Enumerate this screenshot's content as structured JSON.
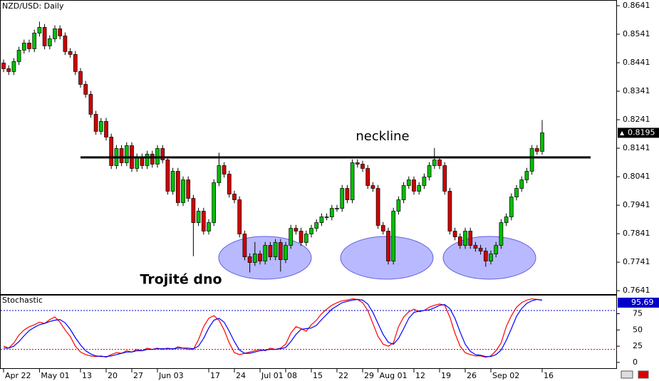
{
  "chart_data": [
    {
      "type": "candlestick",
      "title": "NZD/USD: Daily",
      "categories": [
        "Apr 22",
        null,
        null,
        null,
        null,
        null,
        null,
        "May 01",
        null,
        null,
        null,
        null,
        null,
        null,
        null,
        "13",
        null,
        null,
        null,
        null,
        "20",
        null,
        null,
        null,
        null,
        "27",
        null,
        null,
        null,
        null,
        "Jun 03",
        null,
        null,
        null,
        null,
        null,
        null,
        null,
        null,
        null,
        "17",
        null,
        null,
        null,
        null,
        "24",
        null,
        null,
        null,
        null,
        "Jul 01",
        null,
        null,
        null,
        null,
        "08",
        null,
        null,
        null,
        null,
        "15",
        null,
        null,
        null,
        null,
        "22",
        null,
        null,
        null,
        null,
        "29",
        null,
        null,
        "Aug 01",
        null,
        null,
        null,
        null,
        null,
        null,
        "12",
        null,
        null,
        null,
        null,
        "19",
        null,
        null,
        null,
        null,
        "26",
        null,
        null,
        null,
        null,
        "Sep 02",
        null,
        null,
        null,
        null,
        null,
        null,
        null,
        null,
        null,
        "16"
      ],
      "candles": [
        [
          0.844,
          0.8452,
          0.8408,
          0.842
        ],
        [
          0.842,
          0.8432,
          0.8398,
          0.841
        ],
        [
          0.841,
          0.8457,
          0.8398,
          0.8445
        ],
        [
          0.8445,
          0.8497,
          0.8433,
          0.8485
        ],
        [
          0.8485,
          0.8522,
          0.8473,
          0.851
        ],
        [
          0.851,
          0.8522,
          0.8478,
          0.849
        ],
        [
          0.849,
          0.8557,
          0.8478,
          0.8545
        ],
        [
          0.8545,
          0.8585,
          0.8533,
          0.8565
        ],
        [
          0.8565,
          0.8577,
          0.8488,
          0.85
        ],
        [
          0.85,
          0.8537,
          0.8488,
          0.8525
        ],
        [
          0.8525,
          0.8572,
          0.8513,
          0.856
        ],
        [
          0.856,
          0.8572,
          0.8523,
          0.8535
        ],
        [
          0.8535,
          0.8547,
          0.8468,
          0.848
        ],
        [
          0.848,
          0.8492,
          0.8458,
          0.847
        ],
        [
          0.847,
          0.8482,
          0.8398,
          0.841
        ],
        [
          0.841,
          0.8422,
          0.8353,
          0.8365
        ],
        [
          0.8365,
          0.8377,
          0.8318,
          0.833
        ],
        [
          0.833,
          0.8342,
          0.8248,
          0.826
        ],
        [
          0.826,
          0.8272,
          0.8188,
          0.82
        ],
        [
          0.82,
          0.8247,
          0.8188,
          0.8235
        ],
        [
          0.8235,
          0.8247,
          0.8168,
          0.818
        ],
        [
          0.818,
          0.8192,
          0.8068,
          0.808
        ],
        [
          0.808,
          0.8152,
          0.8068,
          0.814
        ],
        [
          0.814,
          0.8152,
          0.8078,
          0.809
        ],
        [
          0.809,
          0.8162,
          0.8078,
          0.815
        ],
        [
          0.815,
          0.8162,
          0.8058,
          0.807
        ],
        [
          0.807,
          0.8122,
          0.8058,
          0.811
        ],
        [
          0.811,
          0.8122,
          0.8068,
          0.808
        ],
        [
          0.808,
          0.8132,
          0.8068,
          0.812
        ],
        [
          0.812,
          0.8132,
          0.8073,
          0.8085
        ],
        [
          0.8085,
          0.8152,
          0.8073,
          0.814
        ],
        [
          0.814,
          0.8152,
          0.8088,
          0.81
        ],
        [
          0.81,
          0.8112,
          0.7978,
          0.799
        ],
        [
          0.799,
          0.8072,
          0.7978,
          0.806
        ],
        [
          0.806,
          0.8072,
          0.7938,
          0.795
        ],
        [
          0.795,
          0.8042,
          0.7938,
          0.803
        ],
        [
          0.803,
          0.8042,
          0.7953,
          0.7965
        ],
        [
          0.7965,
          0.7977,
          0.7762,
          0.788
        ],
        [
          0.788,
          0.7932,
          0.7868,
          0.792
        ],
        [
          0.792,
          0.7932,
          0.7838,
          0.785
        ],
        [
          0.785,
          0.7892,
          0.7838,
          0.788
        ],
        [
          0.788,
          0.8032,
          0.7868,
          0.802
        ],
        [
          0.802,
          0.8125,
          0.8008,
          0.808
        ],
        [
          0.808,
          0.8092,
          0.8038,
          0.805
        ],
        [
          0.805,
          0.8062,
          0.7968,
          0.798
        ],
        [
          0.798,
          0.7992,
          0.7948,
          0.796
        ],
        [
          0.796,
          0.7972,
          0.7828,
          0.784
        ],
        [
          0.784,
          0.7852,
          0.7748,
          0.776
        ],
        [
          0.776,
          0.7772,
          0.7705,
          0.774
        ],
        [
          0.774,
          0.7812,
          0.7728,
          0.777
        ],
        [
          0.777,
          0.7782,
          0.7733,
          0.7745
        ],
        [
          0.7745,
          0.7812,
          0.7733,
          0.78
        ],
        [
          0.78,
          0.7812,
          0.7748,
          0.776
        ],
        [
          0.776,
          0.7822,
          0.7748,
          0.781
        ],
        [
          0.781,
          0.7822,
          0.7708,
          0.775
        ],
        [
          0.775,
          0.7812,
          0.7738,
          0.78
        ],
        [
          0.78,
          0.7872,
          0.7788,
          0.786
        ],
        [
          0.786,
          0.7872,
          0.7838,
          0.785
        ],
        [
          0.785,
          0.7862,
          0.7798,
          0.781
        ],
        [
          0.781,
          0.7852,
          0.7798,
          0.784
        ],
        [
          0.784,
          0.7872,
          0.7828,
          0.786
        ],
        [
          0.786,
          0.7892,
          0.7848,
          0.788
        ],
        [
          0.788,
          0.7912,
          0.7868,
          0.79
        ],
        [
          0.79,
          0.7912,
          0.7888,
          0.79
        ],
        [
          0.79,
          0.7942,
          0.7888,
          0.793
        ],
        [
          0.793,
          0.7942,
          0.7918,
          0.793
        ],
        [
          0.793,
          0.8012,
          0.7918,
          0.8
        ],
        [
          0.8,
          0.8012,
          0.7948,
          0.796
        ],
        [
          0.796,
          0.8102,
          0.7948,
          0.809
        ],
        [
          0.809,
          0.8102,
          0.8073,
          0.8085
        ],
        [
          0.8085,
          0.8097,
          0.8058,
          0.807
        ],
        [
          0.807,
          0.8082,
          0.7998,
          0.801
        ],
        [
          0.801,
          0.8022,
          0.7988,
          0.8
        ],
        [
          0.8,
          0.8012,
          0.7858,
          0.787
        ],
        [
          0.787,
          0.7882,
          0.7838,
          0.785
        ],
        [
          0.785,
          0.7862,
          0.7733,
          0.7745
        ],
        [
          0.7745,
          0.7932,
          0.7733,
          0.792
        ],
        [
          0.792,
          0.7972,
          0.7908,
          0.796
        ],
        [
          0.796,
          0.8022,
          0.7948,
          0.801
        ],
        [
          0.801,
          0.8042,
          0.7998,
          0.803
        ],
        [
          0.803,
          0.8042,
          0.7978,
          0.799
        ],
        [
          0.799,
          0.8022,
          0.7978,
          0.801
        ],
        [
          0.801,
          0.8052,
          0.7998,
          0.804
        ],
        [
          0.804,
          0.8092,
          0.8028,
          0.808
        ],
        [
          0.808,
          0.8142,
          0.8068,
          0.81
        ],
        [
          0.81,
          0.8112,
          0.8068,
          0.808
        ],
        [
          0.808,
          0.8092,
          0.7978,
          0.799
        ],
        [
          0.799,
          0.8002,
          0.7838,
          0.785
        ],
        [
          0.785,
          0.7862,
          0.7818,
          0.783
        ],
        [
          0.783,
          0.7842,
          0.7788,
          0.78
        ],
        [
          0.78,
          0.7862,
          0.7788,
          0.785
        ],
        [
          0.785,
          0.7862,
          0.7788,
          0.78
        ],
        [
          0.78,
          0.7812,
          0.7778,
          0.779
        ],
        [
          0.779,
          0.7802,
          0.7768,
          0.778
        ],
        [
          0.778,
          0.7792,
          0.7725,
          0.7745
        ],
        [
          0.7745,
          0.7782,
          0.7733,
          0.777
        ],
        [
          0.777,
          0.7812,
          0.7758,
          0.78
        ],
        [
          0.78,
          0.7892,
          0.7788,
          0.788
        ],
        [
          0.788,
          0.7912,
          0.7868,
          0.79
        ],
        [
          0.79,
          0.7982,
          0.7888,
          0.797
        ],
        [
          0.797,
          0.8012,
          0.7958,
          0.8
        ],
        [
          0.8,
          0.8042,
          0.7988,
          0.803
        ],
        [
          0.803,
          0.8072,
          0.8018,
          0.806
        ],
        [
          0.806,
          0.8152,
          0.8048,
          0.814
        ],
        [
          0.814,
          0.8152,
          0.8118,
          0.813
        ],
        [
          0.813,
          0.824,
          0.8118,
          0.8195
        ]
      ],
      "up_color": "#00c000",
      "down_color": "#d00000",
      "ylim": [
        0.7629,
        0.8661
      ],
      "yticks": [
        0.8641,
        0.8541,
        0.8441,
        0.8341,
        0.8241,
        0.8141,
        0.8041,
        0.7941,
        0.7841,
        0.7741,
        0.7641
      ],
      "annotations": [
        "neckline",
        "Trojité dno"
      ]
    },
    {
      "type": "line",
      "title": "Stochastic",
      "series": [
        {
          "color": "#ff0000",
          "values": [
            25,
            22,
            30,
            42,
            50,
            55,
            58,
            62,
            60,
            66,
            70,
            62,
            50,
            40,
            25,
            16,
            12,
            10,
            9,
            10,
            8,
            12,
            15,
            14,
            18,
            16,
            20,
            18,
            22,
            20,
            22,
            20,
            22,
            20,
            24,
            22,
            20,
            20,
            35,
            55,
            68,
            72,
            65,
            50,
            30,
            15,
            12,
            14,
            16,
            18,
            20,
            18,
            22,
            20,
            22,
            28,
            45,
            55,
            52,
            48,
            58,
            65,
            75,
            82,
            88,
            92,
            95,
            96,
            98,
            97,
            92,
            80,
            60,
            40,
            28,
            25,
            30,
            55,
            70,
            78,
            82,
            78,
            80,
            85,
            88,
            90,
            88,
            70,
            45,
            25,
            15,
            12,
            10,
            10,
            8,
            10,
            18,
            30,
            55,
            72,
            85,
            92,
            96,
            98,
            97,
            95.69
          ]
        },
        {
          "color": "#0000ff",
          "values": [
            22,
            22,
            25,
            32,
            41,
            49,
            54,
            58,
            60,
            63,
            65,
            66,
            61,
            51,
            38,
            27,
            18,
            13,
            10,
            9,
            9,
            10,
            12,
            14,
            16,
            16,
            18,
            18,
            20,
            20,
            21,
            21,
            21,
            21,
            22,
            22,
            22,
            21,
            25,
            37,
            53,
            65,
            68,
            62,
            48,
            32,
            19,
            14,
            14,
            16,
            18,
            19,
            20,
            20,
            21,
            23,
            32,
            43,
            51,
            52,
            53,
            57,
            66,
            74,
            82,
            87,
            92,
            94,
            96,
            97,
            96,
            90,
            77,
            60,
            43,
            31,
            28,
            37,
            52,
            68,
            77,
            79,
            80,
            81,
            84,
            88,
            89,
            83,
            68,
            47,
            28,
            17,
            12,
            11,
            9,
            9,
            12,
            19,
            34,
            52,
            71,
            83,
            91,
            95,
            97,
            96
          ]
        }
      ],
      "ylim": [
        -10,
        103
      ],
      "yticks": [
        0,
        25,
        50,
        75
      ],
      "levels": [
        20,
        80
      ]
    }
  ]
}
